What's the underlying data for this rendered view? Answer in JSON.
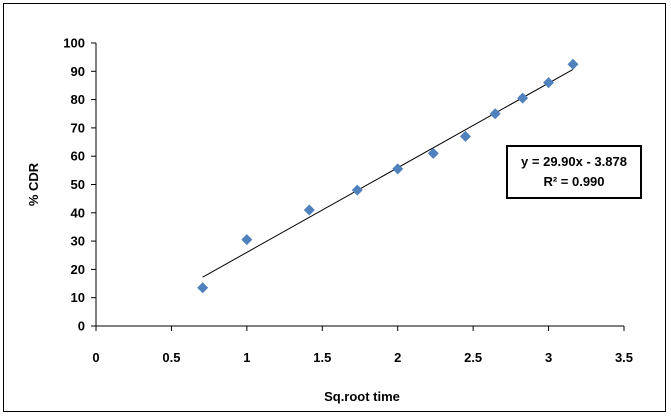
{
  "chart_data": {
    "type": "scatter",
    "title": "",
    "xlabel": "Sq.root time",
    "ylabel": "% CDR",
    "xlim": [
      0,
      3.5
    ],
    "ylim": [
      0,
      100
    ],
    "xticks": [
      "0",
      "0.5",
      "1",
      "1.5",
      "2",
      "2.5",
      "3",
      "3.5"
    ],
    "yticks": [
      "0",
      "10",
      "20",
      "30",
      "40",
      "50",
      "60",
      "70",
      "80",
      "90",
      "100"
    ],
    "grid": false,
    "legend": "none",
    "series": [
      {
        "marker": "diamond",
        "color": "#4F81BD",
        "x": [
          0.707,
          1.0,
          1.414,
          1.732,
          2.0,
          2.236,
          2.449,
          2.646,
          2.828,
          3.0,
          3.162
        ],
        "y": [
          13.5,
          30.5,
          41.0,
          48.0,
          55.5,
          61.0,
          67.0,
          75.0,
          80.5,
          86.0,
          92.5
        ]
      }
    ],
    "trendline": {
      "slope": 29.9,
      "intercept": -3.878,
      "x_range": [
        0.707,
        3.162
      ],
      "color": "#000000"
    },
    "annotations": {
      "equation": "y = 29.90x - 3.878",
      "r_squared": "R² = 0.990"
    }
  }
}
